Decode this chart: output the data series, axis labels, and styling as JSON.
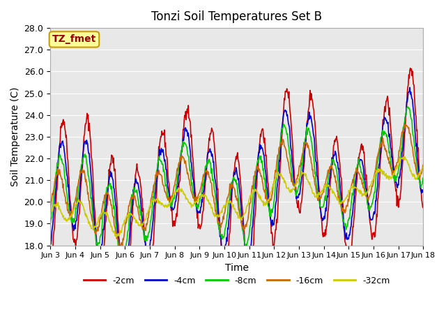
{
  "title": "Tonzi Soil Temperatures Set B",
  "xlabel": "Time",
  "ylabel": "Soil Temperature (C)",
  "annotation": "TZ_fmet",
  "ylim": [
    18.0,
    28.0
  ],
  "yticks": [
    18.0,
    19.0,
    20.0,
    21.0,
    22.0,
    23.0,
    24.0,
    25.0,
    26.0,
    27.0,
    28.0
  ],
  "xtick_labels": [
    "Jun 3",
    "Jun 4",
    "Jun 5",
    "Jun 6",
    "Jun 7",
    "Jun 8",
    "Jun 9",
    "Jun 10",
    "Jun 11",
    "Jun 12",
    "Jun 13",
    "Jun 14",
    "Jun 15",
    "Jun 16",
    "Jun 17",
    "Jun 18"
  ],
  "xtick_positions": [
    0,
    1,
    2,
    3,
    4,
    5,
    6,
    7,
    8,
    9,
    10,
    11,
    12,
    13,
    14,
    15
  ],
  "n_days": 15,
  "bg_color": "#e8e8e8",
  "line_colors": {
    "-2cm": "#cc0000",
    "-4cm": "#0000cc",
    "-8cm": "#00cc00",
    "-16cm": "#cc6600",
    "-32cm": "#cccc00"
  },
  "legend_labels": [
    "-2cm",
    "-4cm",
    "-8cm",
    "-16cm",
    "-32cm"
  ],
  "annotation_bg": "#ffff99",
  "annotation_border": "#cc9900",
  "annotation_text_color": "#990000"
}
